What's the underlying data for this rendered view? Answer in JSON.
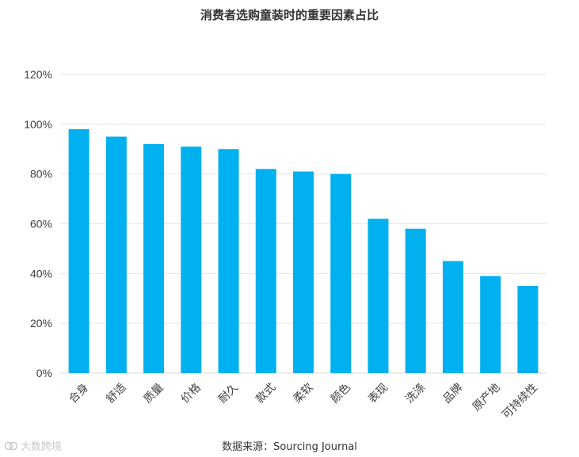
{
  "chart_data": {
    "type": "bar",
    "title": "消费者选购童装时的重要因素占比",
    "categories": [
      "合身",
      "舒适",
      "质量",
      "价格",
      "耐久",
      "款式",
      "柔软",
      "颜色",
      "表现",
      "洗涤",
      "品牌",
      "原产地",
      "可持续性"
    ],
    "values": [
      98,
      95,
      92,
      91,
      90,
      82,
      81,
      80,
      62,
      58,
      45,
      39,
      35
    ],
    "value_unit": "%",
    "ylim": [
      0,
      120
    ],
    "yticks": [
      "0%",
      "20%",
      "40%",
      "60%",
      "80%",
      "100%",
      "120%"
    ],
    "ytick_values": [
      0,
      20,
      40,
      60,
      80,
      100,
      120
    ],
    "xlabel": "",
    "ylabel": "",
    "grid": true,
    "legend": "none",
    "bar_color": "#00b0ef"
  },
  "footer": {
    "source": "数据来源：Sourcing Journal",
    "watermark": "大数跨境"
  }
}
